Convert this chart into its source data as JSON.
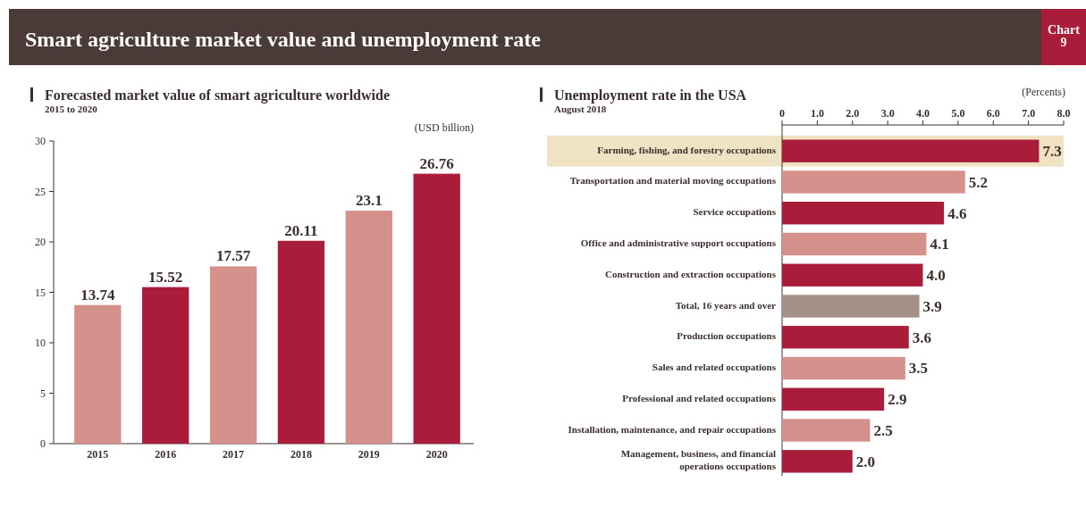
{
  "chart_data": [
    {
      "type": "other",
      "title": "Smart agriculture market value and unemployment rate",
      "annotations": [
        "Chart 9"
      ]
    },
    {
      "type": "bar",
      "title": "Forecasted market value of smart agriculture worldwide",
      "subtitle": "2015 to 2020",
      "ylabel": "(USD billion)",
      "categories": [
        "2015",
        "2016",
        "2017",
        "2018",
        "2019",
        "2020"
      ],
      "values": [
        13.74,
        15.52,
        17.57,
        20.11,
        23.1,
        26.76
      ],
      "colors": [
        "#d4918b",
        "#a91d3a",
        "#d4918b",
        "#a91d3a",
        "#d4918b",
        "#a91d3a"
      ],
      "ylim": [
        0,
        30
      ],
      "yticks": [
        0,
        5,
        10,
        15,
        20,
        25,
        30
      ],
      "data_labels": true
    },
    {
      "type": "bar",
      "orientation": "horizontal",
      "title": "Unemployment rate in the USA",
      "subtitle": "August 2018",
      "xlabel": "(Percents)",
      "categories": [
        "Farming, fishing, and forestry occupations",
        "Transportation and material moving occupations",
        "Service occupations",
        "Office and administrative support occupations",
        "Construction and extraction occupations",
        "Total, 16 years and over",
        "Production occupations",
        "Sales and related occupations",
        "Professional and related occupations",
        "Installation, maintenance, and repair occupations",
        "Management, business, and financial operations occupations"
      ],
      "values": [
        7.3,
        5.2,
        4.6,
        4.1,
        4.0,
        3.9,
        3.6,
        3.5,
        2.9,
        2.5,
        2.0
      ],
      "value_labels": [
        "7.3",
        "5.2",
        "4.6",
        "4.1",
        "4.0",
        "3.9",
        "3.6",
        "3.5",
        "2.9",
        "2.5",
        "2.0"
      ],
      "colors": [
        "#a91d3a",
        "#d4918b",
        "#a91d3a",
        "#d4918b",
        "#a91d3a",
        "#a39086",
        "#a91d3a",
        "#d4918b",
        "#a91d3a",
        "#d4918b",
        "#a91d3a"
      ],
      "xlim": [
        0,
        8
      ],
      "xticks": [
        0,
        {
          "value": 1,
          "label": "1.0"
        },
        {
          "value": 2,
          "label": "2.0"
        },
        {
          "value": 3,
          "label": "3.0"
        },
        {
          "value": 4,
          "label": "4.0"
        },
        {
          "value": 5,
          "label": "5.0"
        },
        {
          "value": 6,
          "label": "6.0"
        },
        {
          "value": 7,
          "label": "7.0"
        },
        {
          "value": 8,
          "label": "8.0"
        }
      ],
      "bands": [
        {
          "axis": "y",
          "from": "Farming, fishing, and forestry occupations",
          "to": "Farming, fishing, and forestry occupations",
          "color": "#efe3c4"
        }
      ]
    }
  ]
}
